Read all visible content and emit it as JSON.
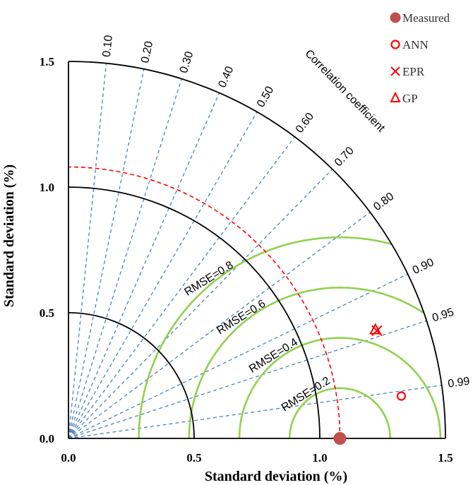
{
  "chart_data": {
    "type": "taylor",
    "xlabel": "Standard deviation (%)",
    "ylabel": "Standard deviation (%)",
    "xlim": [
      0,
      1.5
    ],
    "ylim": [
      0,
      1.5
    ],
    "x_ticks": [
      "0.0",
      "0.5",
      "1.0",
      "1.5"
    ],
    "y_ticks": [
      "0.0",
      "0.5",
      "1.0",
      "1.5"
    ],
    "std_arcs": [
      0.5,
      1.0,
      1.5
    ],
    "reference_std": 1.08,
    "correlation_title": "Correlation coefficient",
    "correlation_ticks": [
      {
        "value": 0.1,
        "label": "0.10"
      },
      {
        "value": 0.2,
        "label": "0.20"
      },
      {
        "value": 0.3,
        "label": "0.30"
      },
      {
        "value": 0.4,
        "label": "0.40"
      },
      {
        "value": 0.5,
        "label": "0.50"
      },
      {
        "value": 0.6,
        "label": "0.60"
      },
      {
        "value": 0.7,
        "label": "0.70"
      },
      {
        "value": 0.8,
        "label": "0.80"
      },
      {
        "value": 0.9,
        "label": "0.90"
      },
      {
        "value": 0.95,
        "label": "0.95"
      },
      {
        "value": 0.99,
        "label": "0.99"
      }
    ],
    "rmse_contours": [
      {
        "value": 0.2,
        "label": "RMSE=0.2"
      },
      {
        "value": 0.4,
        "label": "RMSE=0.4"
      },
      {
        "value": 0.6,
        "label": "RMSE=0.6"
      },
      {
        "value": 0.8,
        "label": "RMSE=0.8"
      }
    ],
    "points": [
      {
        "name": "Measured",
        "marker": "filled-circle",
        "color": "#c0504d",
        "std": 1.08,
        "corr": 1.0
      },
      {
        "name": "ANN",
        "marker": "open-circle",
        "color": "#ff0000",
        "std": 1.335,
        "corr": 0.992
      },
      {
        "name": "EPR",
        "marker": "x",
        "color": "#ff0000",
        "std": 1.3,
        "corr": 0.944
      },
      {
        "name": "GP",
        "marker": "triangle",
        "color": "#ff0000",
        "std": 1.295,
        "corr": 0.943
      }
    ],
    "colors": {
      "correlation_lines": "#4f81bd",
      "rmse_contours": "#92d050",
      "reference_arc": "#ff0000",
      "std_arcs": "#000000"
    }
  }
}
